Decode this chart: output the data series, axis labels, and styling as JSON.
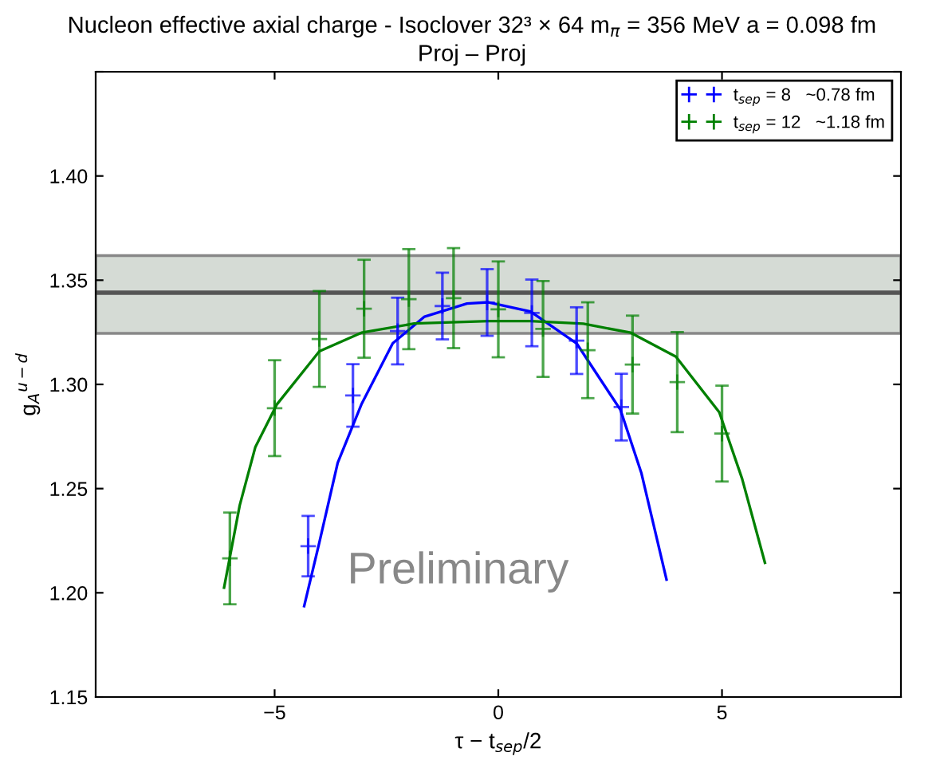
{
  "chart_data": {
    "type": "scatter",
    "title": "Nucleon effective axial charge - Isoclover 32³ × 64 m$_{π}$ = 356 MeV a = 0.098 fm",
    "subtitle": "Proj – Proj",
    "xlabel": "τ − t$_{sep}$/2",
    "ylabel": "g$_{A}$$^{u−d}$",
    "xlim": [
      -9,
      9
    ],
    "xticks": [
      {
        "value": -5,
        "label": "−5"
      },
      0,
      5
    ],
    "ylim": [
      1.15,
      1.45
    ],
    "yticks": [
      {
        "value": 1.15,
        "label": "1.15"
      },
      {
        "value": 1.2,
        "label": "1.20"
      },
      {
        "value": 1.25,
        "label": "1.25"
      },
      {
        "value": 1.3,
        "label": "1.30"
      },
      {
        "value": 1.35,
        "label": "1.35"
      },
      {
        "value": 1.4,
        "label": "1.40"
      },
      {
        "value": 1.45,
        "label": null
      }
    ],
    "grid": false,
    "legend": "top right",
    "bands": [
      {
        "axis": "y",
        "from": 1.3245,
        "to": 1.3618,
        "color": "#d5dbd5"
      }
    ],
    "ref_lines": [
      {
        "axis": "y",
        "value": 1.344,
        "color": "#555555"
      }
    ],
    "annotations": [
      "Preliminary"
    ],
    "series": [
      {
        "name": "t$_{sep}$ = 8   ~0.78 fm",
        "marker": "cross",
        "color": "#0000ff",
        "x": [
          -4.25,
          -3.25,
          -2.25,
          -1.25,
          -0.25,
          0.75,
          1.75,
          2.75
        ],
        "values": [
          1.2224,
          1.2947,
          1.3256,
          1.3376,
          1.3393,
          1.3343,
          1.321,
          1.2891
        ],
        "errors": [
          0.0145,
          0.015,
          0.016,
          0.016,
          0.016,
          0.016,
          0.016,
          0.016
        ]
      },
      {
        "name": "t$_{sep}$ = 12   ~1.18 fm",
        "marker": "cross",
        "color": "#008000",
        "x": [
          -6,
          -5,
          -4,
          -3,
          -2,
          -1,
          0,
          1,
          2,
          3,
          4,
          5
        ],
        "values": [
          1.2165,
          1.2886,
          1.3218,
          1.3363,
          1.3409,
          1.3414,
          1.336,
          1.3266,
          1.3164,
          1.3095,
          1.3011,
          1.2764
        ],
        "errors": [
          0.022,
          0.023,
          0.023,
          0.0235,
          0.024,
          0.024,
          0.023,
          0.023,
          0.023,
          0.0235,
          0.024,
          0.023
        ]
      },
      {
        "type": "line",
        "color": "#0000ff",
        "x": [
          -4.34,
          -4.0,
          -3.59,
          -3.06,
          -2.36,
          -1.65,
          -0.7,
          -0.22,
          0.72,
          1.75,
          2.73,
          3.2,
          3.76
        ],
        "values": [
          1.1936,
          1.2242,
          1.2624,
          1.2904,
          1.3197,
          1.3325,
          1.3388,
          1.3394,
          1.335,
          1.3197,
          1.2878,
          1.2573,
          1.2063
        ]
      },
      {
        "type": "line",
        "color": "#008000",
        "x": [
          -6.13,
          -5.78,
          -5.43,
          -4.95,
          -4.0,
          -3.06,
          -1.88,
          -0.22,
          0.72,
          1.9,
          2.96,
          3.97,
          4.94,
          5.45,
          5.96
        ],
        "values": [
          1.2025,
          1.242,
          1.27,
          1.2904,
          1.3159,
          1.3248,
          1.3292,
          1.3304,
          1.3304,
          1.3291,
          1.3248,
          1.3133,
          1.2866,
          1.2547,
          1.2144
        ]
      }
    ]
  }
}
